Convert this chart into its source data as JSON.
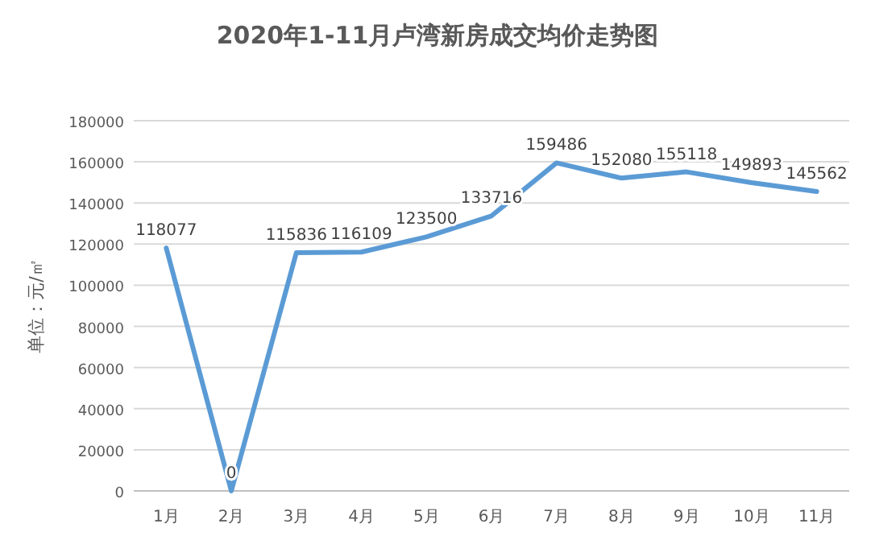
{
  "chart_data": {
    "type": "line",
    "title": "2020年1-11月卢湾新房成交均价走势图",
    "ylabel": "单位：元/㎡",
    "categories": [
      "1月",
      "2月",
      "3月",
      "4月",
      "5月",
      "6月",
      "7月",
      "8月",
      "9月",
      "10月",
      "11月"
    ],
    "series": [
      {
        "color": "#5b9bd5",
        "values": [
          118077,
          0,
          115836,
          116109,
          123500,
          133716,
          159486,
          152080,
          155118,
          149893,
          145562
        ]
      }
    ],
    "ylim": [
      0,
      180000
    ],
    "yticks": [
      0,
      20000,
      40000,
      60000,
      80000,
      100000,
      120000,
      140000,
      160000,
      180000
    ],
    "grid": "y",
    "data_labels": true,
    "marker": "none",
    "line_style": "solid"
  }
}
